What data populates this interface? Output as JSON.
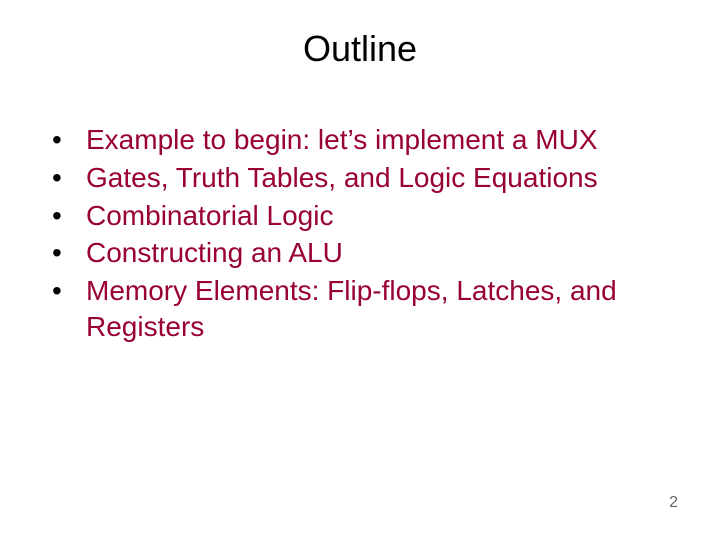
{
  "title": "Outline",
  "bullets": [
    "Example to begin: let’s implement a MUX",
    "Gates, Truth Tables, and Logic Equations",
    "Combinatorial Logic",
    "Constructing an ALU",
    "Memory Elements:  Flip-flops, Latches, and Registers"
  ],
  "page_number": "2",
  "colors": {
    "background": "#ffffff",
    "title": "#000000",
    "bullet_text": "#990033",
    "bullet_dot": "#000000",
    "pagenum": "#666666"
  },
  "typography": {
    "title_fontsize": 36,
    "bullet_fontsize": 28,
    "pagenum_fontsize": 16,
    "font_family": "Arial"
  }
}
